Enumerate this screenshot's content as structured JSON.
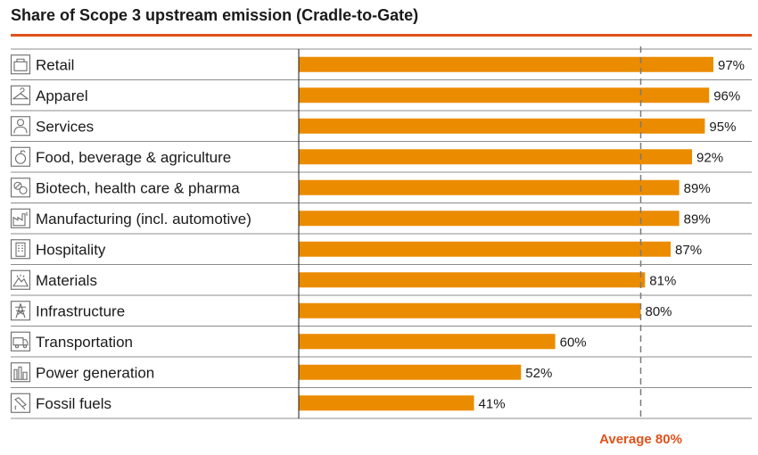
{
  "title": "Share of Scope 3 upstream emission (Cradle-to-Gate)",
  "colors": {
    "bar": "#eb8c00",
    "accent": "#e0521b",
    "rule": "#8c8c8c",
    "text": "#1a1a1a"
  },
  "chart_data": {
    "type": "bar",
    "orientation": "horizontal",
    "categories": [
      "Retail",
      "Apparel",
      "Services",
      "Food, beverage & agriculture",
      "Biotech, health care & pharma",
      "Manufacturing (incl. automotive)",
      "Hospitality",
      "Materials",
      "Infrastructure",
      "Transportation",
      "Power generation",
      "Fossil fuels"
    ],
    "icons": [
      "shopping-bag-icon",
      "hanger-icon",
      "person-icon",
      "apple-icon",
      "pills-icon",
      "factory-icon",
      "building-icon",
      "mountain-icon",
      "pylon-icon",
      "truck-icon",
      "power-plant-icon",
      "fuel-nozzle-icon"
    ],
    "values": [
      97,
      96,
      95,
      92,
      89,
      89,
      87,
      81,
      80,
      60,
      52,
      41
    ],
    "value_labels": [
      "97%",
      "96%",
      "95%",
      "92%",
      "89%",
      "89%",
      "87%",
      "81%",
      "80%",
      "60%",
      "52%",
      "41%"
    ],
    "xlim": [
      0,
      100
    ],
    "reference_line": {
      "value": 80,
      "label": "Average 80%"
    }
  }
}
